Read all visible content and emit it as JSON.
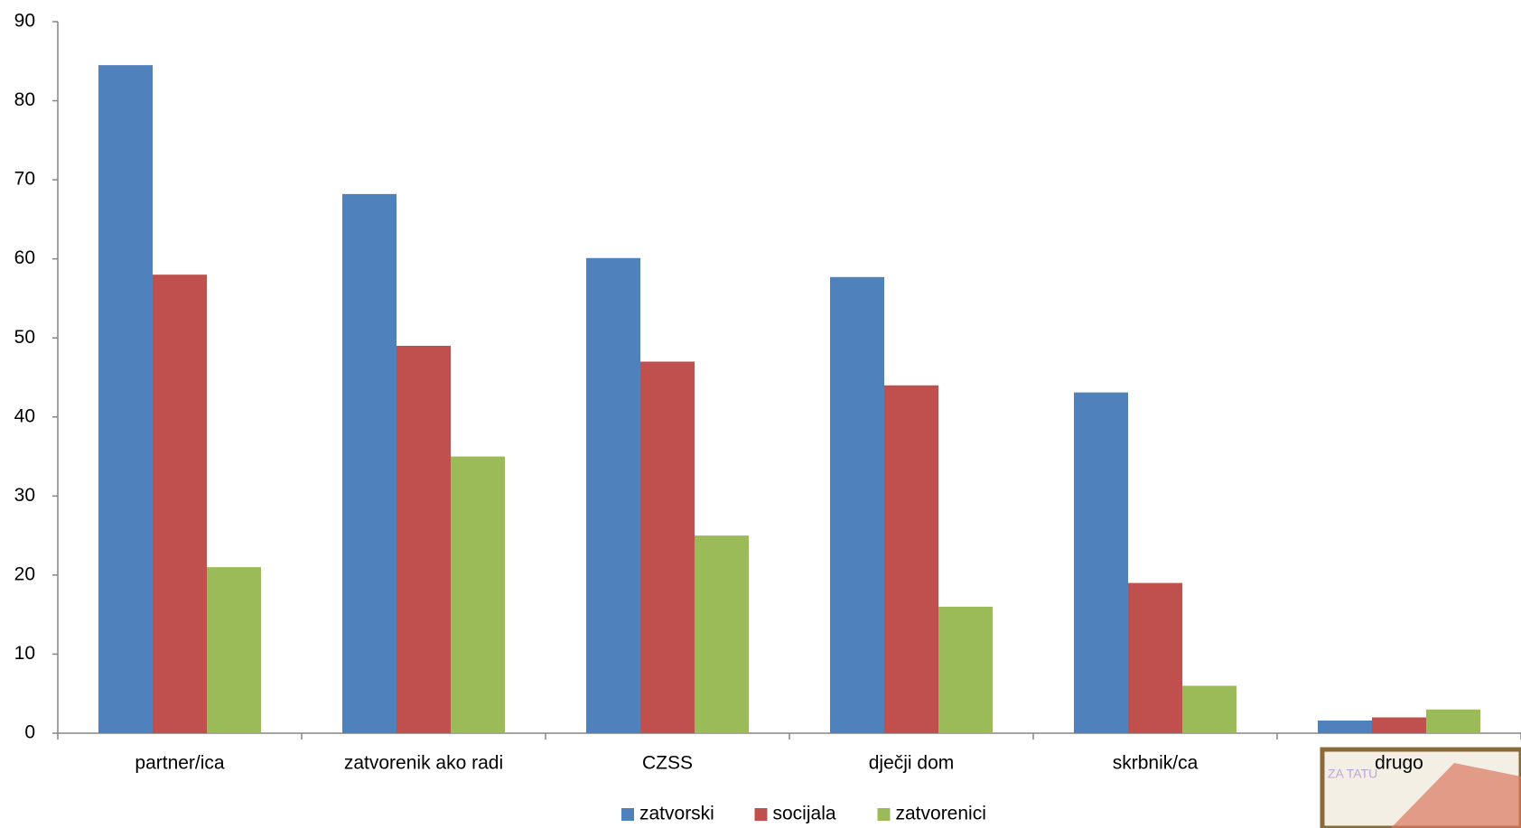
{
  "chart_data": {
    "type": "bar",
    "categories": [
      "partner/ica",
      "zatvorenik ako radi",
      "CZSS",
      "dječji dom",
      "skrbnik/ca",
      "drugo"
    ],
    "series": [
      {
        "name": "zatvorski",
        "color": "#4f81bd",
        "values": [
          84.5,
          68.2,
          60.1,
          57.7,
          43.1,
          1.6
        ]
      },
      {
        "name": "socijala",
        "color": "#c0504d",
        "values": [
          58,
          49,
          47,
          44,
          19,
          2
        ]
      },
      {
        "name": "zatvorenici",
        "color": "#9bbb59",
        "values": [
          21,
          35,
          25,
          16,
          6,
          3
        ]
      }
    ],
    "ylim": [
      0,
      90
    ],
    "yticks": [
      0,
      10,
      20,
      30,
      40,
      50,
      60,
      70,
      80,
      90
    ],
    "grid": false,
    "legend": "bottom"
  }
}
